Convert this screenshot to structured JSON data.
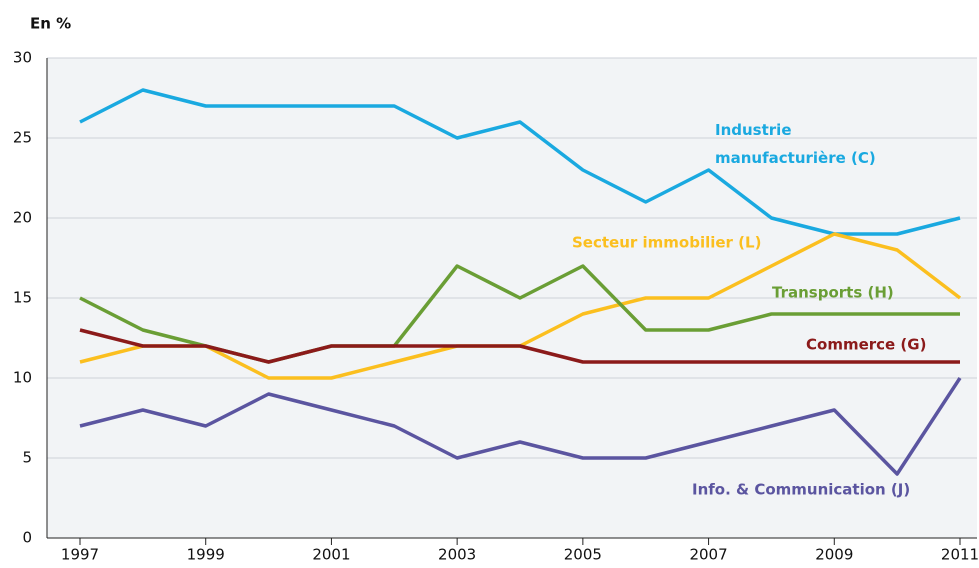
{
  "chart_data": {
    "type": "line",
    "y_label": "En %",
    "categories": [
      "1997",
      null,
      "1999",
      null,
      "2001",
      null,
      "2003",
      null,
      "2005",
      null,
      "2007",
      null,
      "2009",
      null,
      "2011"
    ],
    "series": [
      {
        "name": "Industrie manufacturière (C)",
        "color": "#1aa9e0",
        "values": [
          26,
          28,
          27,
          27,
          27,
          27,
          25,
          26,
          23,
          21,
          23,
          20,
          19,
          19,
          20
        ]
      },
      {
        "name": "Secteur immobilier (L)",
        "color": "#fbbf1f",
        "values": [
          11,
          12,
          12,
          10,
          10,
          11,
          12,
          12,
          14,
          15,
          15,
          17,
          19,
          18,
          15
        ]
      },
      {
        "name": "Transports (H)",
        "color": "#6a9e35",
        "values": [
          15,
          13,
          12,
          11,
          12,
          12,
          17,
          15,
          17,
          13,
          13,
          14,
          14,
          14,
          14
        ]
      },
      {
        "name": "Commerce (G)",
        "color": "#8b1a1a",
        "values": [
          13,
          12,
          12,
          11,
          12,
          12,
          12,
          12,
          11,
          11,
          11,
          11,
          11,
          11,
          11
        ]
      },
      {
        "name": "Info. & Communication (J)",
        "color": "#5b55a0",
        "values": [
          7,
          8,
          7,
          9,
          8,
          7,
          5,
          6,
          5,
          5,
          6,
          7,
          8,
          4,
          10
        ]
      }
    ],
    "ylim": [
      0,
      30
    ],
    "yticks": [
      0,
      5,
      10,
      15,
      20,
      25,
      30
    ],
    "grid": true
  }
}
